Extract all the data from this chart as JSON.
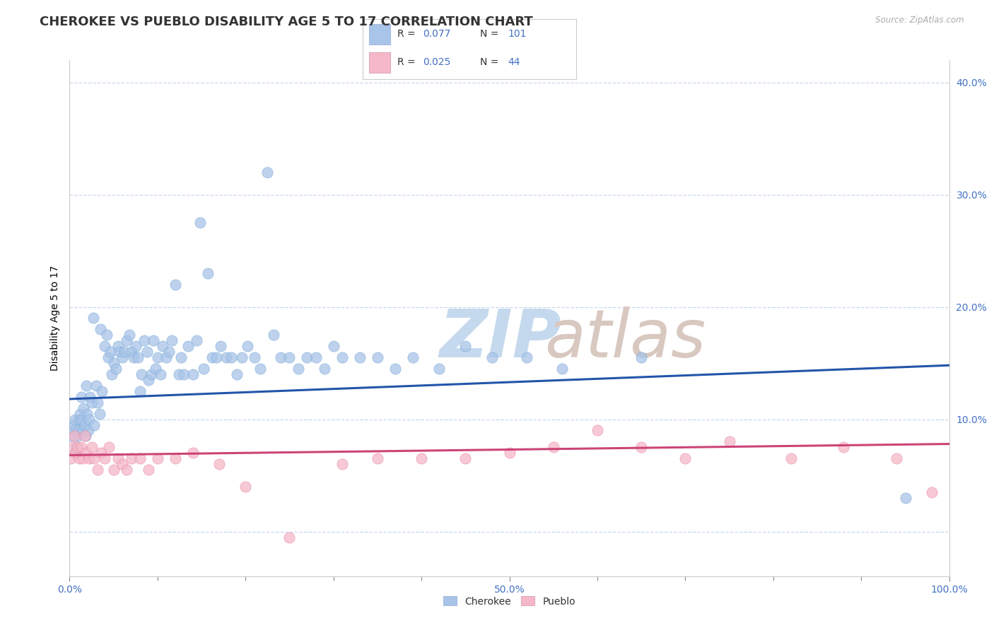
{
  "title": "CHEROKEE VS PUEBLO DISABILITY AGE 5 TO 17 CORRELATION CHART",
  "source_text": "Source: ZipAtlas.com",
  "ylabel": "Disability Age 5 to 17",
  "xlim": [
    0.0,
    1.0
  ],
  "ylim": [
    -0.04,
    0.42
  ],
  "cherokee_color": "#a8c4e8",
  "cherokee_line_color": "#2255aa",
  "pueblo_color": "#f5b8c8",
  "pueblo_line_color": "#cc4477",
  "background_color": "#ffffff",
  "grid_color": "#c8d8ea",
  "legend_cherokee_label": "Cherokee",
  "legend_pueblo_label": "Pueblo",
  "title_fontsize": 13,
  "label_fontsize": 10,
  "tick_fontsize": 10,
  "marker_size": 120,
  "cherokee_x": [
    0.003,
    0.004,
    0.005,
    0.006,
    0.007,
    0.008,
    0.009,
    0.01,
    0.011,
    0.012,
    0.013,
    0.014,
    0.015,
    0.016,
    0.017,
    0.018,
    0.019,
    0.02,
    0.021,
    0.022,
    0.023,
    0.025,
    0.027,
    0.028,
    0.03,
    0.032,
    0.034,
    0.035,
    0.037,
    0.04,
    0.042,
    0.044,
    0.046,
    0.048,
    0.05,
    0.053,
    0.055,
    0.057,
    0.06,
    0.062,
    0.065,
    0.068,
    0.07,
    0.073,
    0.075,
    0.078,
    0.08,
    0.082,
    0.085,
    0.088,
    0.09,
    0.093,
    0.095,
    0.098,
    0.1,
    0.103,
    0.106,
    0.11,
    0.113,
    0.116,
    0.12,
    0.124,
    0.127,
    0.13,
    0.135,
    0.14,
    0.144,
    0.148,
    0.152,
    0.157,
    0.162,
    0.167,
    0.172,
    0.178,
    0.184,
    0.19,
    0.196,
    0.202,
    0.21,
    0.217,
    0.225,
    0.232,
    0.24,
    0.25,
    0.26,
    0.27,
    0.28,
    0.29,
    0.3,
    0.31,
    0.33,
    0.35,
    0.37,
    0.39,
    0.42,
    0.45,
    0.48,
    0.52,
    0.56,
    0.65,
    0.95
  ],
  "cherokee_y": [
    0.085,
    0.09,
    0.095,
    0.1,
    0.07,
    0.075,
    0.085,
    0.09,
    0.1,
    0.105,
    0.12,
    0.1,
    0.09,
    0.11,
    0.095,
    0.085,
    0.13,
    0.105,
    0.09,
    0.1,
    0.12,
    0.115,
    0.19,
    0.095,
    0.13,
    0.115,
    0.105,
    0.18,
    0.125,
    0.165,
    0.175,
    0.155,
    0.16,
    0.14,
    0.15,
    0.145,
    0.165,
    0.16,
    0.155,
    0.16,
    0.17,
    0.175,
    0.16,
    0.155,
    0.165,
    0.155,
    0.125,
    0.14,
    0.17,
    0.16,
    0.135,
    0.14,
    0.17,
    0.145,
    0.155,
    0.14,
    0.165,
    0.155,
    0.16,
    0.17,
    0.22,
    0.14,
    0.155,
    0.14,
    0.165,
    0.14,
    0.17,
    0.275,
    0.145,
    0.23,
    0.155,
    0.155,
    0.165,
    0.155,
    0.155,
    0.14,
    0.155,
    0.165,
    0.155,
    0.145,
    0.32,
    0.175,
    0.155,
    0.155,
    0.145,
    0.155,
    0.155,
    0.145,
    0.165,
    0.155,
    0.155,
    0.155,
    0.145,
    0.155,
    0.145,
    0.165,
    0.155,
    0.155,
    0.145,
    0.155,
    0.03
  ],
  "pueblo_x": [
    0.001,
    0.003,
    0.005,
    0.007,
    0.009,
    0.011,
    0.013,
    0.015,
    0.017,
    0.019,
    0.022,
    0.025,
    0.028,
    0.032,
    0.036,
    0.04,
    0.045,
    0.05,
    0.055,
    0.06,
    0.065,
    0.07,
    0.08,
    0.09,
    0.1,
    0.12,
    0.14,
    0.17,
    0.2,
    0.25,
    0.31,
    0.35,
    0.4,
    0.45,
    0.5,
    0.55,
    0.6,
    0.65,
    0.7,
    0.75,
    0.82,
    0.88,
    0.94,
    0.98
  ],
  "pueblo_y": [
    0.065,
    0.075,
    0.085,
    0.07,
    0.075,
    0.065,
    0.075,
    0.065,
    0.085,
    0.07,
    0.065,
    0.075,
    0.065,
    0.055,
    0.07,
    0.065,
    0.075,
    0.055,
    0.065,
    0.06,
    0.055,
    0.065,
    0.065,
    0.055,
    0.065,
    0.065,
    0.07,
    0.06,
    0.04,
    -0.005,
    0.06,
    0.065,
    0.065,
    0.065,
    0.07,
    0.075,
    0.09,
    0.075,
    0.065,
    0.08,
    0.065,
    0.075,
    0.065,
    0.035
  ],
  "cherokee_trend_x0": 0.0,
  "cherokee_trend_y0": 0.118,
  "cherokee_trend_x1": 1.0,
  "cherokee_trend_y1": 0.148,
  "pueblo_trend_x0": 0.0,
  "pueblo_trend_y0": 0.068,
  "pueblo_trend_x1": 1.0,
  "pueblo_trend_y1": 0.078
}
